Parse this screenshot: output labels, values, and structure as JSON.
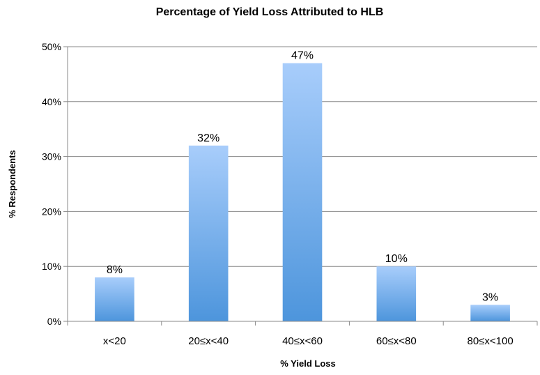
{
  "chart_data": {
    "type": "bar",
    "title": "Percentage of Yield Loss Attributed to HLB",
    "xlabel": "% Yield Loss",
    "ylabel": "% Respondents",
    "categories": [
      "x<20",
      "20≤x<40",
      "40≤x<60",
      "60≤x<80",
      "80≤x<100"
    ],
    "values": [
      8,
      32,
      47,
      10,
      3
    ],
    "data_labels": [
      "8%",
      "32%",
      "47%",
      "10%",
      "3%"
    ],
    "ylim": [
      0,
      50
    ],
    "yticks": [
      0,
      10,
      20,
      30,
      40,
      50
    ],
    "ytick_labels": [
      "0%",
      "10%",
      "20%",
      "30%",
      "40%",
      "50%"
    ],
    "grid": true,
    "legend": "none",
    "bar_gradient": [
      "#a8cdfb",
      "#4d95dc"
    ],
    "grid_color": "#888888",
    "axis_color": "#888888",
    "text_color": "#000000"
  }
}
